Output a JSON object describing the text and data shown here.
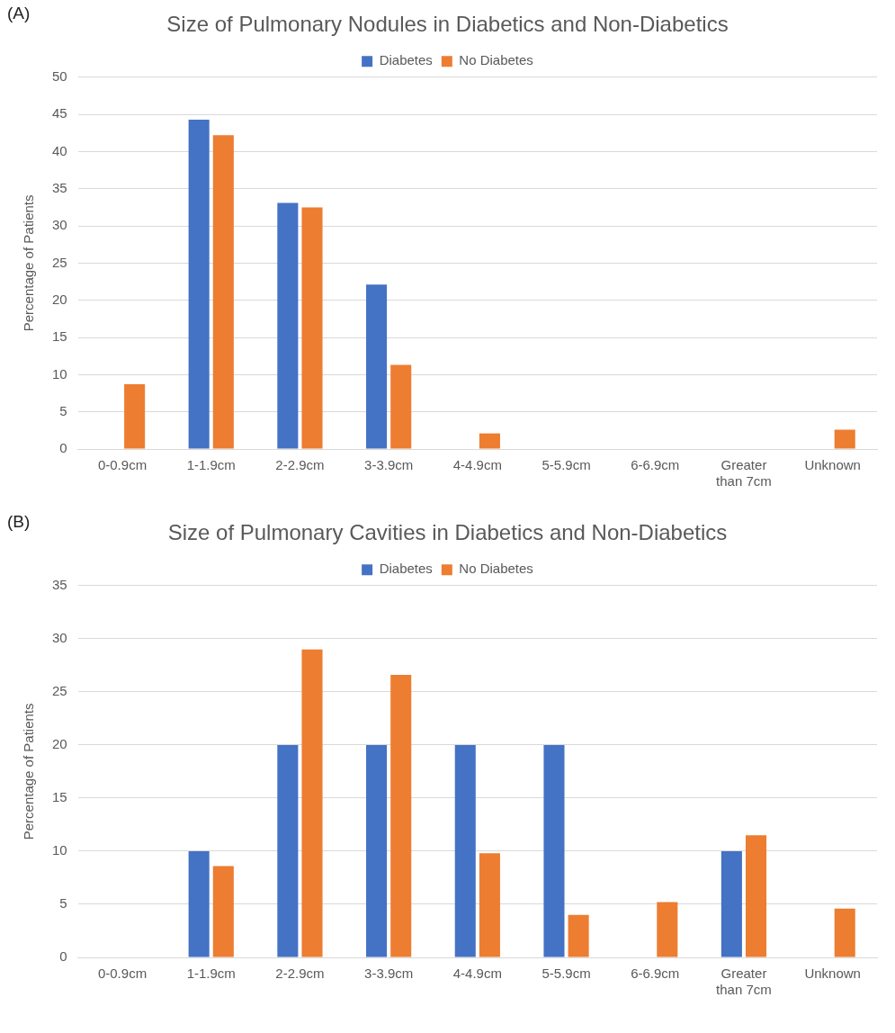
{
  "chart_data": [
    {
      "type": "bar",
      "title": "Size of Pulmonary Nodules in Diabetics and Non-Diabetics",
      "ylabel": "Percentage of Patients",
      "annotations": [
        "(A)"
      ],
      "categories": [
        "0-0.9cm",
        "1-1.9cm",
        "2-2.9cm",
        "3-3.9cm",
        "4-4.9cm",
        "5-5.9cm",
        "6-6.9cm",
        "Greater than 7cm",
        "Unknown"
      ],
      "series": [
        {
          "name": "Diabetes",
          "color": "#4472c4",
          "values": [
            0,
            44.3,
            33.1,
            22.1,
            0,
            0,
            0,
            0,
            0
          ]
        },
        {
          "name": "No Diabetes",
          "color": "#ed7d31",
          "values": [
            8.7,
            42.2,
            32.5,
            11.3,
            2.1,
            0,
            0,
            0,
            2.6
          ]
        }
      ],
      "ylim": [
        0,
        50
      ],
      "yticks": [
        0,
        5,
        10,
        15,
        20,
        25,
        30,
        35,
        40,
        45,
        50
      ],
      "grid": "y",
      "legend": "top"
    },
    {
      "type": "bar",
      "title": "Size of Pulmonary Cavities in Diabetics and Non-Diabetics",
      "ylabel": "Percentage of Patients",
      "annotations": [
        "(B)"
      ],
      "categories": [
        "0-0.9cm",
        "1-1.9cm",
        "2-2.9cm",
        "3-3.9cm",
        "4-4.9cm",
        "5-5.9cm",
        "6-6.9cm",
        "Greater than 7cm",
        "Unknown"
      ],
      "series": [
        {
          "name": "Diabetes",
          "color": "#4472c4",
          "values": [
            0,
            10,
            20,
            20,
            20,
            20,
            0,
            10,
            0
          ]
        },
        {
          "name": "No Diabetes",
          "color": "#ed7d31",
          "values": [
            0,
            8.6,
            29.0,
            26.6,
            9.8,
            4.0,
            5.2,
            11.5,
            4.6
          ]
        }
      ],
      "ylim": [
        0,
        35
      ],
      "yticks": [
        0,
        5,
        10,
        15,
        20,
        25,
        30,
        35
      ],
      "grid": "y",
      "legend": "top"
    }
  ]
}
